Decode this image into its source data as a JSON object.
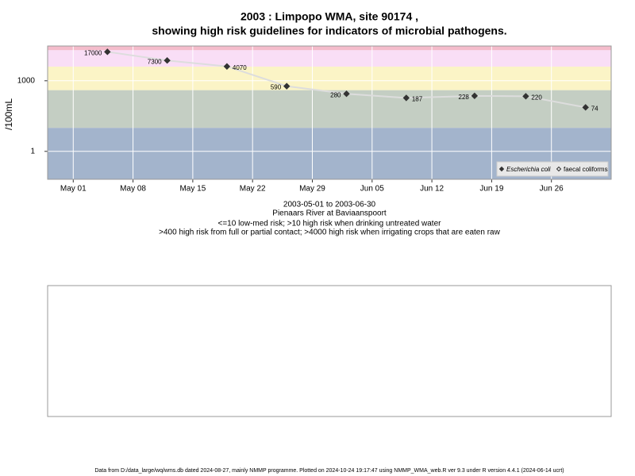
{
  "chart_data": {
    "type": "line",
    "title": "2003 : Limpopo WMA, site 90174 ,",
    "subtitle": "showing high risk guidelines for indicators of microbial pathogens.",
    "y_label": "/100mL",
    "x": [
      "2003-05-05",
      "2003-05-12",
      "2003-05-19",
      "2003-05-26",
      "2003-06-02",
      "2003-06-09",
      "2003-06-17",
      "2003-06-23",
      "2003-06-30"
    ],
    "series": [
      {
        "name": "Escherichia coli",
        "color": "#333333",
        "values": [
          17000,
          7300,
          4070,
          590,
          280,
          187,
          228,
          220,
          74
        ]
      },
      {
        "name": "faecal coliforms",
        "color": "#333333",
        "values": [
          null,
          null,
          null,
          null,
          null,
          null,
          null,
          null,
          null
        ]
      }
    ],
    "log_y": true,
    "xlim": [
      "2003-04-28",
      "2003-07-03"
    ],
    "xticks": [
      {
        "value": "2003-05-01",
        "label": "May 01"
      },
      {
        "value": "2003-05-08",
        "label": "May 08"
      },
      {
        "value": "2003-05-15",
        "label": "May 15"
      },
      {
        "value": "2003-05-22",
        "label": "May 22"
      },
      {
        "value": "2003-05-29",
        "label": "May 29"
      },
      {
        "value": "2003-06-05",
        "label": "Jun 05"
      },
      {
        "value": "2003-06-12",
        "label": "Jun 12"
      },
      {
        "value": "2003-06-19",
        "label": "Jun 19"
      },
      {
        "value": "2003-06-26",
        "label": "Jun 26"
      }
    ],
    "ylim": [
      0.065,
      30000
    ],
    "yticks": [
      1,
      1000
    ],
    "bands": [
      {
        "from": 0.065,
        "to": 10,
        "color": "#a3b4cc"
      },
      {
        "from": 10,
        "to": 400,
        "color": "#c4cec3"
      },
      {
        "from": 400,
        "to": 4000,
        "color": "#fbf4c6"
      },
      {
        "from": 4000,
        "to": 20000,
        "color": "#f9def6"
      },
      {
        "from": 20000,
        "to": 30000,
        "color": "#f4bccb"
      }
    ],
    "line_color": "#dddddd",
    "grid": true,
    "legend": "bottom-right",
    "notes": [
      "2003-05-01 to 2003-06-30",
      "Pienaars River at Baviaanspoort",
      "<=10 low-med risk; >10 high risk when drinking untreated water",
      ">400 high risk from full or partial contact; >4000 high risk when irrigating crops that are eaten raw"
    ],
    "footer": "Data from D:/data_large/wq/wms.db dated 2024-08-27, mainly NMMP programme. Plotted on 2024-10-24 19:17:47 using NMMP_WMA_web.R ver 9.3 under R version 4.4.1 (2024-06-14 ucrt)"
  }
}
